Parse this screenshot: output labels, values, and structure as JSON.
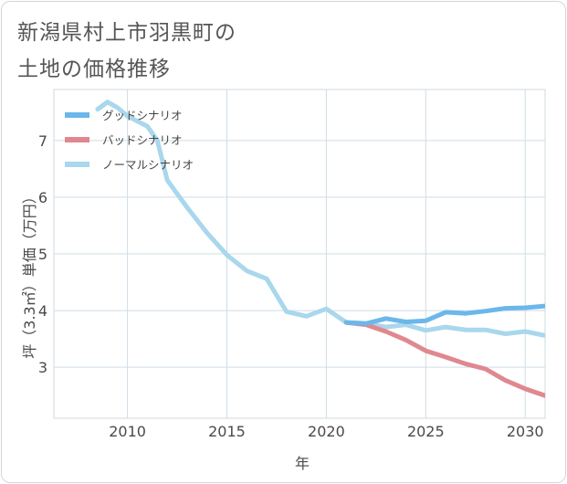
{
  "title": {
    "line1": "新潟県村上市羽黒町の",
    "line2": "土地の価格推移"
  },
  "chart_data": {
    "type": "line",
    "xlabel": "年",
    "ylabel": "坪（3.3㎡）単価（万円）",
    "xlim": [
      2006.3,
      2031
    ],
    "ylim": [
      2.1,
      7.9
    ],
    "x_ticks": [
      2010,
      2015,
      2020,
      2025,
      2030
    ],
    "y_ticks": [
      3,
      4,
      5,
      6,
      7
    ],
    "legend_position": "top-left",
    "grid": true,
    "series": [
      {
        "name": "グッドシナリオ",
        "color": "#6cb7ea",
        "x": [
          2021,
          2022,
          2023,
          2024,
          2025,
          2026,
          2027,
          2028,
          2029,
          2030,
          2031
        ],
        "y": [
          3.79,
          3.77,
          3.86,
          3.8,
          3.82,
          3.97,
          3.95,
          3.99,
          4.04,
          4.05,
          4.08
        ]
      },
      {
        "name": "バッドシナリオ",
        "color": "#e0888f",
        "x": [
          2021,
          2022,
          2023,
          2024,
          2025,
          2026,
          2027,
          2028,
          2029,
          2030,
          2031
        ],
        "y": [
          3.79,
          3.75,
          3.63,
          3.48,
          3.29,
          3.18,
          3.06,
          2.97,
          2.77,
          2.62,
          2.5
        ]
      },
      {
        "name": "ノーマルシナリオ",
        "color": "#a9d7ec",
        "x": [
          2008.5,
          2009,
          2009.5,
          2010,
          2011,
          2011.5,
          2012,
          2013,
          2014,
          2015,
          2016,
          2017,
          2018,
          2019,
          2020,
          2021,
          2022,
          2023,
          2024,
          2025,
          2026,
          2027,
          2028,
          2029,
          2030,
          2031
        ],
        "y": [
          7.55,
          7.68,
          7.58,
          7.43,
          7.25,
          7.0,
          6.3,
          5.82,
          5.37,
          4.98,
          4.7,
          4.56,
          3.98,
          3.9,
          4.03,
          3.79,
          3.77,
          3.71,
          3.75,
          3.65,
          3.71,
          3.66,
          3.66,
          3.59,
          3.63,
          3.56
        ]
      }
    ]
  }
}
